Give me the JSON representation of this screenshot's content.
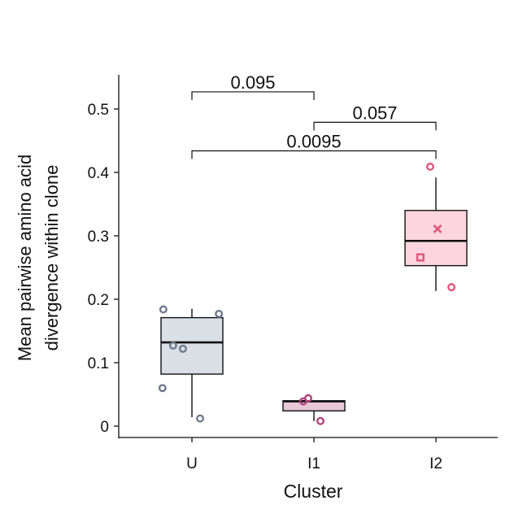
{
  "chart_data": {
    "type": "box",
    "xlabel": "Cluster",
    "ylabel_line1": "Mean pairwise amino acid",
    "ylabel_line2": "divergence within clone",
    "ylim": [
      -0.018,
      0.555
    ],
    "yticks": [
      0,
      0.1,
      0.2,
      0.3,
      0.4,
      0.5
    ],
    "ytick_labels": [
      "0",
      "0.1",
      "0.2",
      "0.3",
      "0.4",
      "0.5"
    ],
    "categories": [
      "U",
      "I1",
      "I2"
    ],
    "boxes": [
      {
        "category": "U",
        "fill": "#dbdfe6",
        "point_color": "#6f7a8c",
        "whisker_low": 0.014,
        "q1": 0.082,
        "median": 0.132,
        "q3": 0.171,
        "whisker_high": 0.185,
        "points": [
          {
            "offset": -0.35,
            "y": 0.184,
            "marker": "circle"
          },
          {
            "offset": 0.33,
            "y": 0.177,
            "marker": "circle"
          },
          {
            "offset": -0.23,
            "y": 0.127,
            "marker": "circle"
          },
          {
            "offset": -0.11,
            "y": 0.122,
            "marker": "circle"
          },
          {
            "offset": -0.36,
            "y": 0.06,
            "marker": "circle"
          },
          {
            "offset": 0.1,
            "y": 0.012,
            "marker": "circle"
          }
        ]
      },
      {
        "category": "I1",
        "fill": "#e8c7d6",
        "point_color": "#b0447a",
        "whisker_low": 0.008,
        "q1": 0.024,
        "median": 0.039,
        "q3": 0.04,
        "whisker_high": 0.04,
        "points": [
          {
            "offset": -0.13,
            "y": 0.039,
            "marker": "circle"
          },
          {
            "offset": -0.07,
            "y": 0.044,
            "marker": "circle"
          },
          {
            "offset": 0.08,
            "y": 0.008,
            "marker": "circle"
          }
        ]
      },
      {
        "category": "I2",
        "fill": "#fcd5de",
        "point_color": "#e0577c",
        "whisker_low": 0.213,
        "q1": 0.253,
        "median": 0.292,
        "q3": 0.34,
        "whisker_high": 0.392,
        "points": [
          {
            "offset": -0.07,
            "y": 0.409,
            "marker": "circle"
          },
          {
            "offset": 0.02,
            "y": 0.311,
            "marker": "x"
          },
          {
            "offset": -0.19,
            "y": 0.266,
            "marker": "square"
          },
          {
            "offset": 0.19,
            "y": 0.219,
            "marker": "circle"
          }
        ]
      }
    ],
    "comparisons": [
      {
        "from": "U",
        "to": "I1",
        "y": 0.527,
        "label": "0.095"
      },
      {
        "from": "I1",
        "to": "I2",
        "y": 0.479,
        "label": "0.057"
      },
      {
        "from": "U",
        "to": "I2",
        "y": 0.434,
        "label": "0.0095"
      }
    ]
  }
}
